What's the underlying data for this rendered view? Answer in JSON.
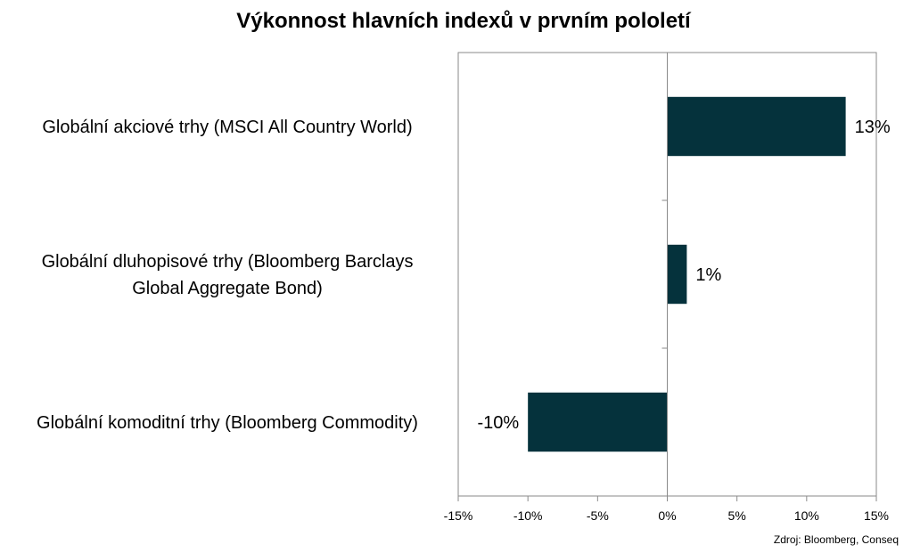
{
  "chart_data": {
    "type": "bar",
    "orientation": "horizontal",
    "title": "Výkonnost hlavních indexů v prvním pololetí",
    "categories": [
      [
        "Globální akciové trhy (MSCI All Country World)"
      ],
      [
        "Globální dluhopisové trhy (Bloomberg Barclays",
        "Global Aggregate Bond)"
      ],
      [
        "Globální komoditní trhy (Bloomberg Commodity)"
      ]
    ],
    "values": [
      12.8,
      1.4,
      -10.0
    ],
    "data_labels": [
      "13%",
      "1%",
      "-10%"
    ],
    "xlim": [
      -15,
      15
    ],
    "xticks": [
      -15,
      -10,
      -5,
      0,
      5,
      10,
      15
    ],
    "xtick_labels": [
      "-15%",
      "-10%",
      "-5%",
      "0%",
      "5%",
      "10%",
      "15%"
    ],
    "grid": false,
    "bar_color": "#05323C",
    "source": "Zdroj: Bloomberg, Conseq"
  }
}
